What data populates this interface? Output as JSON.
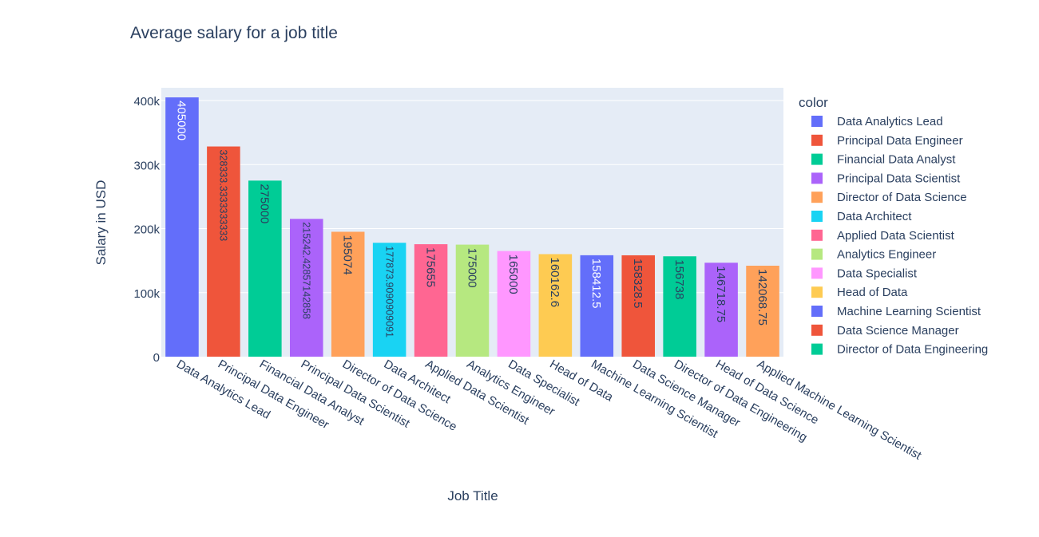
{
  "chart_data": {
    "type": "bar",
    "title": "Average salary for a job title",
    "xlabel": "Job Title",
    "ylabel": "Salary in USD",
    "ylim": [
      0,
      420000
    ],
    "yticks": [
      0,
      100000,
      200000,
      300000,
      400000
    ],
    "ytick_labels": [
      "0",
      "100k",
      "200k",
      "300k",
      "400k"
    ],
    "grid": true,
    "legend_title": "color",
    "legend_position": "right",
    "categories": [
      "Data Analytics Lead",
      "Principal Data Engineer",
      "Financial Data Analyst",
      "Principal Data Scientist",
      "Director of Data Science",
      "Data Architect",
      "Applied Data Scientist",
      "Analytics Engineer",
      "Data Specialist",
      "Head of Data",
      "Machine Learning Scientist",
      "Data Science Manager",
      "Director of Data Engineering",
      "Head of Data Science",
      "Applied Machine Learning Scientist"
    ],
    "values": [
      405000,
      328333.3333333333,
      275000,
      215242.42857142858,
      195074,
      177873.9090909091,
      175655,
      175000,
      165000,
      160162.6,
      158412.5,
      158328.5,
      156738,
      146718.75,
      142068.75
    ],
    "value_labels": [
      "405000",
      "328333.3333333333",
      "275000",
      "215242.42857142858",
      "195074",
      "177873.9090909091",
      "175655",
      "175000",
      "165000",
      "160162.6",
      "158412.5",
      "158328.5",
      "156738",
      "146718.75",
      "142068.75"
    ],
    "colors": [
      "#636efa",
      "#EF553B",
      "#00cc96",
      "#ab63fa",
      "#FFA15A",
      "#19d3f3",
      "#FF6692",
      "#B6E880",
      "#FF97FF",
      "#FECB52",
      "#636efa",
      "#EF553B",
      "#00cc96",
      "#ab63fa",
      "#FFA15A"
    ],
    "label_colors": [
      "#ffffff",
      "#2a3f5f",
      "#2a3f5f",
      "#2a3f5f",
      "#2a3f5f",
      "#2a3f5f",
      "#2a3f5f",
      "#2a3f5f",
      "#2a3f5f",
      "#2a3f5f",
      "#ffffff",
      "#2a3f5f",
      "#2a3f5f",
      "#2a3f5f",
      "#2a3f5f"
    ],
    "legend": [
      "Data Analytics Lead",
      "Principal Data Engineer",
      "Financial Data Analyst",
      "Principal Data Scientist",
      "Director of Data Science",
      "Data Architect",
      "Applied Data Scientist",
      "Analytics Engineer",
      "Data Specialist",
      "Head of Data",
      "Machine Learning Scientist",
      "Data Science Manager",
      "Director of Data Engineering"
    ],
    "plot_bg": "#e5ecf6",
    "text_color": "#2a3f5f"
  }
}
